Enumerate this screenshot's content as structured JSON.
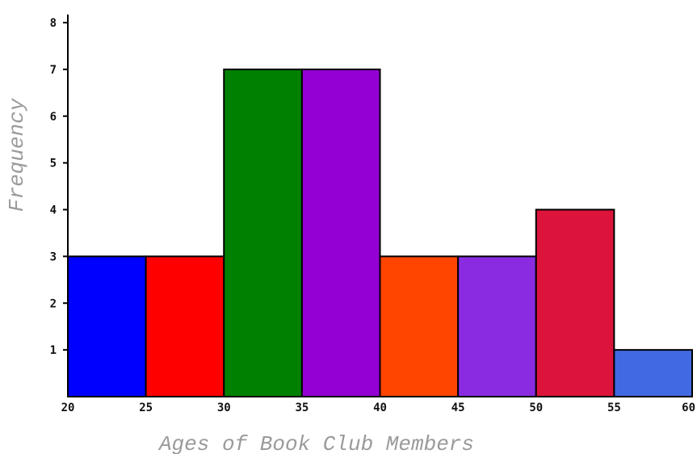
{
  "chart_data": {
    "type": "bar",
    "subtype": "histogram",
    "xlabel": "Ages of Book Club Members",
    "ylabel": "Frequency",
    "bins": [
      {
        "start": 20,
        "end": 25,
        "value": 3,
        "color": "#0000ff"
      },
      {
        "start": 25,
        "end": 30,
        "value": 3,
        "color": "#ff0000"
      },
      {
        "start": 30,
        "end": 35,
        "value": 7,
        "color": "#008000"
      },
      {
        "start": 35,
        "end": 40,
        "value": 7,
        "color": "#9400d3"
      },
      {
        "start": 40,
        "end": 45,
        "value": 3,
        "color": "#ff4500"
      },
      {
        "start": 45,
        "end": 50,
        "value": 3,
        "color": "#8a2be2"
      },
      {
        "start": 50,
        "end": 55,
        "value": 4,
        "color": "#dc143c"
      },
      {
        "start": 55,
        "end": 60,
        "value": 1,
        "color": "#4169e1"
      }
    ],
    "xlim": [
      20,
      60
    ],
    "ylim": [
      0,
      8
    ],
    "x_ticks": [
      "20",
      "25",
      "30",
      "35",
      "40",
      "45",
      "50",
      "55",
      "60"
    ],
    "y_ticks": [
      "1",
      "2",
      "3",
      "4",
      "5",
      "6",
      "7",
      "8"
    ],
    "grid": false,
    "legend": "none"
  }
}
